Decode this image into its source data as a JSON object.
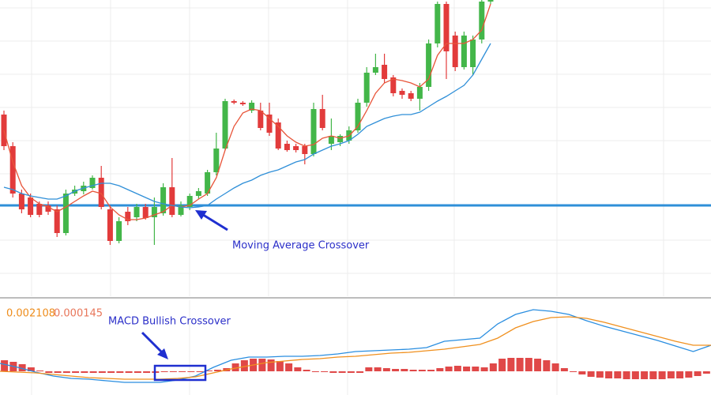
{
  "chart_data": [
    {
      "type": "candlestick",
      "open": [
        255,
        215,
        155,
        150,
        142,
        140,
        135,
        105,
        155,
        158,
        162,
        175,
        135,
        95,
        132,
        125,
        138,
        125,
        130,
        163,
        128,
        138,
        152,
        155,
        182,
        212,
        272,
        270,
        260,
        260,
        255,
        245,
        218,
        215,
        215,
        205,
        262,
        218,
        220,
        222,
        235,
        270,
        308,
        318,
        302,
        285,
        282,
        275,
        290,
        345,
        395,
        355,
        315,
        315,
        350,
        398
      ],
      "high": [
        260,
        220,
        160,
        155,
        145,
        145,
        140,
        160,
        165,
        170,
        178,
        190,
        140,
        125,
        138,
        142,
        142,
        150,
        168,
        200,
        145,
        155,
        162,
        185,
        232,
        275,
        274,
        272,
        273,
        270,
        270,
        250,
        222,
        218,
        218,
        270,
        280,
        250,
        230,
        240,
        275,
        315,
        332,
        332,
        305,
        288,
        285,
        295,
        350,
        398,
        398,
        360,
        360,
        355,
        400,
        400
      ],
      "low": [
        210,
        150,
        130,
        125,
        125,
        128,
        100,
        102,
        152,
        154,
        160,
        135,
        90,
        92,
        115,
        120,
        122,
        90,
        127,
        125,
        126,
        134,
        148,
        152,
        178,
        210,
        268,
        266,
        257,
        235,
        228,
        210,
        208,
        207,
        192,
        202,
        235,
        210,
        215,
        218,
        232,
        265,
        305,
        295,
        278,
        275,
        272,
        260,
        285,
        340,
        300,
        310,
        312,
        305,
        345,
        395
      ],
      "close": [
        215,
        155,
        135,
        128,
        128,
        132,
        105,
        155,
        160,
        165,
        175,
        138,
        95,
        120,
        120,
        138,
        124,
        138,
        163,
        128,
        140,
        152,
        158,
        182,
        212,
        272,
        270,
        268,
        270,
        238,
        232,
        212,
        210,
        210,
        205,
        262,
        238,
        228,
        228,
        235,
        270,
        308,
        315,
        300,
        282,
        280,
        275,
        290,
        345,
        395,
        335,
        315,
        355,
        350,
        398,
        400
      ],
      "up_color": "#43b649",
      "down_color": "#e23b3b",
      "lines": [
        {
          "color": "#e8553a",
          "values": [
            235,
            195,
            165,
            150,
            142,
            138,
            132,
            138,
            145,
            152,
            158,
            155,
            138,
            128,
            122,
            122,
            124,
            128,
            132,
            140,
            138,
            140,
            148,
            155,
            175,
            210,
            240,
            257,
            262,
            260,
            250,
            240,
            228,
            220,
            215,
            217,
            225,
            228,
            225,
            228,
            240,
            260,
            282,
            295,
            300,
            298,
            295,
            290,
            300,
            330,
            345,
            345,
            345,
            350,
            362,
            395
          ]
        },
        {
          "color": "#2f8fd8",
          "values": [
            163,
            160,
            155,
            152,
            150,
            148,
            148,
            152,
            158,
            162,
            165,
            168,
            168,
            165,
            160,
            155,
            150,
            145,
            142,
            140,
            138,
            137,
            138,
            140,
            148,
            155,
            162,
            168,
            172,
            178,
            182,
            185,
            190,
            195,
            198,
            205,
            210,
            215,
            218,
            222,
            230,
            240,
            245,
            250,
            253,
            255,
            255,
            258,
            265,
            272,
            278,
            285,
            292,
            305,
            325,
            345
          ]
        }
      ],
      "level": 140,
      "level_color": "#2f8fd8",
      "ylim": [
        25,
        400
      ],
      "annotation": "Moving Average Crossover"
    },
    {
      "type": "macd",
      "readouts": [
        0.002108,
        0.000145
      ],
      "readout_colors": [
        "#ee8d1c",
        "#e8765a"
      ],
      "histogram": [
        14,
        12,
        9,
        5,
        1,
        -2,
        -2,
        -2,
        -2,
        -2,
        -2,
        -2,
        -2,
        -2,
        -2,
        -2,
        -2,
        -2,
        -1,
        -1,
        -1,
        0,
        0,
        1,
        2,
        4,
        10,
        14,
        16,
        16,
        15,
        13,
        10,
        5,
        2,
        0,
        -1,
        -2,
        -2,
        -2,
        -2,
        5,
        5,
        4,
        3,
        3,
        2,
        2,
        2,
        4,
        6,
        7,
        6,
        6,
        5,
        10,
        16,
        17,
        17,
        17,
        16,
        14,
        10,
        4,
        -1,
        -4,
        -7,
        -8,
        -9,
        -9,
        -10,
        -10,
        -10,
        -10,
        -10,
        -9,
        -9,
        -8,
        -6,
        -3
      ],
      "histogram_color": "#e04848",
      "lines": [
        {
          "color": "#2a8ee0",
          "values": [
            10,
            5,
            -1,
            -6,
            -9,
            -10,
            -12,
            -14,
            -14,
            -14,
            -11,
            -6,
            5,
            14,
            18,
            18,
            19,
            19,
            20,
            22,
            25,
            26,
            27,
            28,
            30,
            38,
            40,
            42,
            60,
            72,
            78,
            76,
            72,
            64,
            57,
            51,
            45,
            39,
            32,
            25,
            33
          ]
        },
        {
          "color": "#f0901e",
          "values": [
            0,
            -1,
            -2,
            -4,
            -6,
            -8,
            -9,
            -10,
            -10,
            -10,
            -9,
            -7,
            -2,
            3,
            7,
            11,
            13,
            15,
            16,
            18,
            19,
            21,
            23,
            24,
            26,
            28,
            31,
            34,
            42,
            55,
            63,
            68,
            69,
            67,
            62,
            56,
            50,
            44,
            38,
            33,
            33
          ]
        }
      ],
      "ylim": [
        -30,
        92
      ],
      "annotation": "MACD Bullish Crossover"
    }
  ]
}
